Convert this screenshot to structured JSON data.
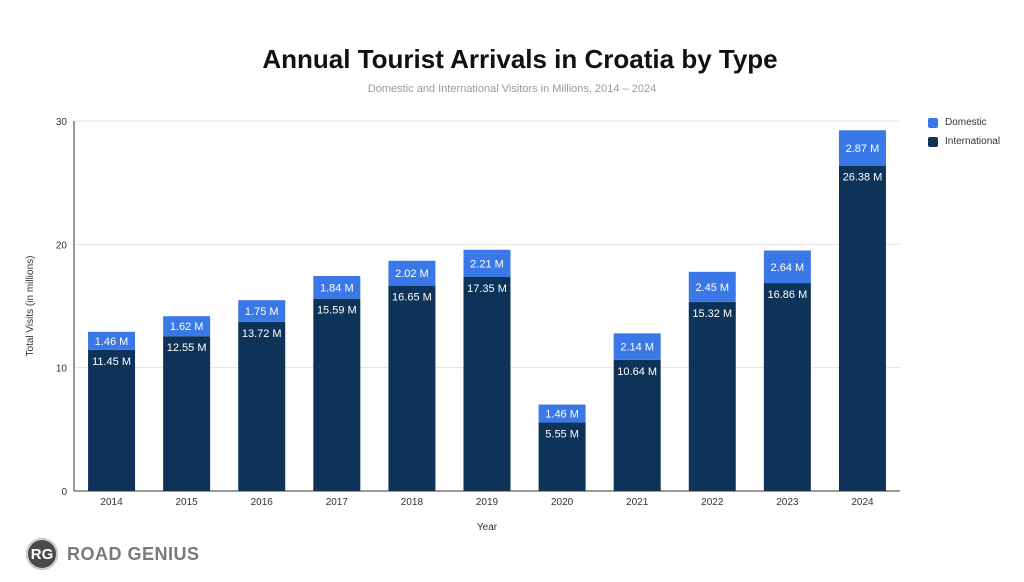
{
  "title": "Annual Tourist Arrivals in Croatia by Type",
  "subtitle": "Domestic and International Visitors in Millions, 2014 – 2024",
  "brand": {
    "badge": "RG",
    "name": "ROAD GENIUS"
  },
  "colors": {
    "domestic": "#3b78e7",
    "international": "#0d3359",
    "grid": "#e3e3e3",
    "axis": "#333333"
  },
  "chart_data": {
    "type": "bar",
    "stacked": true,
    "title": "Annual Tourist Arrivals in Croatia by Type",
    "subtitle": "Domestic and International Visitors in Millions, 2014 – 2024",
    "xlabel": "Year",
    "ylabel": "Total Visits (in millions)",
    "ylim": [
      0,
      30
    ],
    "yticks": [
      0,
      10,
      20,
      30
    ],
    "grid": true,
    "legend_position": "right",
    "categories": [
      "2014",
      "2015",
      "2016",
      "2017",
      "2018",
      "2019",
      "2020",
      "2021",
      "2022",
      "2023",
      "2024"
    ],
    "series": [
      {
        "name": "International",
        "color": "#0d3359",
        "values": [
          11.45,
          12.55,
          13.72,
          15.59,
          16.65,
          17.35,
          5.55,
          10.64,
          15.32,
          16.86,
          26.38
        ],
        "labels": [
          "11.45 M",
          "12.55 M",
          "13.72 M",
          "15.59 M",
          "16.65 M",
          "17.35 M",
          "5.55 M",
          "10.64 M",
          "15.32 M",
          "16.86 M",
          "26.38 M"
        ]
      },
      {
        "name": "Domestic",
        "color": "#3b78e7",
        "values": [
          1.46,
          1.62,
          1.75,
          1.84,
          2.02,
          2.21,
          1.46,
          2.14,
          2.45,
          2.64,
          2.87
        ],
        "labels": [
          "1.46 M",
          "1.62 M",
          "1.75 M",
          "1.84 M",
          "2.02 M",
          "2.21 M",
          "1.46 M",
          "2.14 M",
          "2.45 M",
          "2.64 M",
          "2.87 M"
        ]
      }
    ],
    "legend": [
      {
        "name": "Domestic",
        "color": "#3b78e7"
      },
      {
        "name": "International",
        "color": "#0d3359"
      }
    ]
  }
}
